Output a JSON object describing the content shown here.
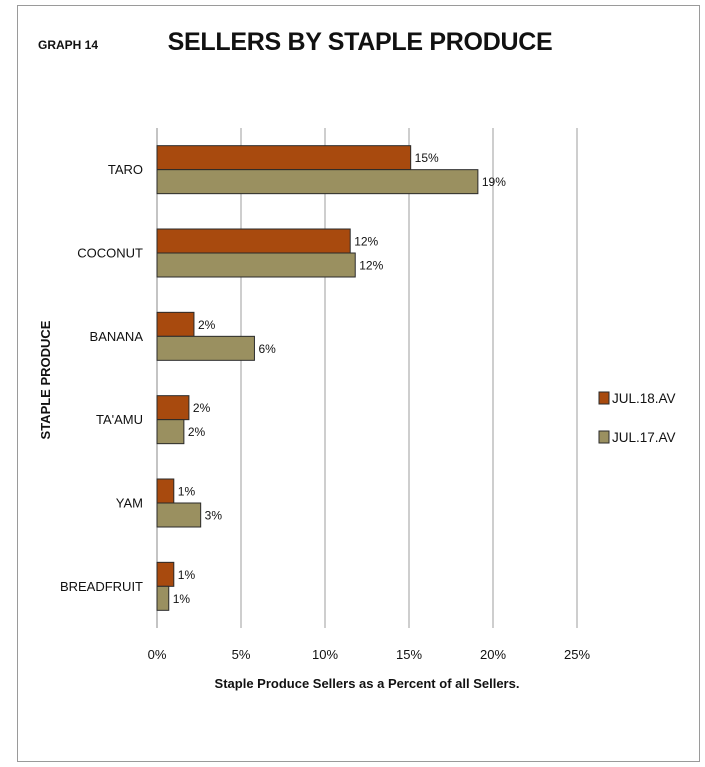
{
  "header": {
    "graph_label": "GRAPH 14"
  },
  "chart_data": {
    "type": "bar",
    "orientation": "horizontal",
    "title": "SELLERS BY STAPLE PRODUCE",
    "xlabel": "Staple Produce Sellers as a Percent of all Sellers.",
    "ylabel": "STAPLE PRODUCE",
    "categories": [
      "TARO",
      "COCONUT",
      "BANANA",
      "TA'AMU",
      "YAM",
      "BREADFRUIT"
    ],
    "series": [
      {
        "name": "JUL.18.AV",
        "color": "#a84a0e",
        "values": [
          15.1,
          11.5,
          2.2,
          1.9,
          1.0,
          1.0
        ],
        "labels": [
          "15%",
          "12%",
          "2%",
          "2%",
          "1%",
          "1%"
        ]
      },
      {
        "name": "JUL.17.AV",
        "color": "#9a9060",
        "values": [
          19.1,
          11.8,
          5.8,
          1.6,
          2.6,
          0.7
        ],
        "labels": [
          "19%",
          "12%",
          "6%",
          "2%",
          "3%",
          "1%"
        ]
      }
    ],
    "xlim": [
      0,
      25
    ],
    "xticks": [
      0,
      5,
      10,
      15,
      20,
      25
    ],
    "xtick_labels": [
      "0%",
      "5%",
      "10%",
      "15%",
      "20%",
      "25%"
    ],
    "grid": "vertical",
    "legend_position": "right"
  }
}
